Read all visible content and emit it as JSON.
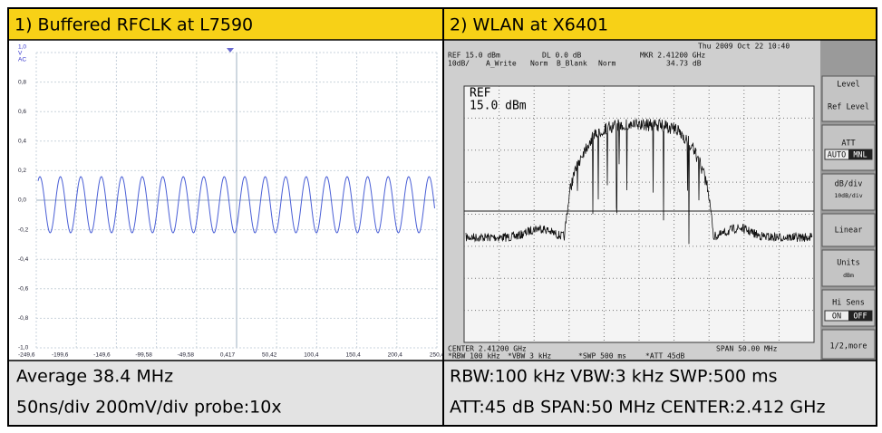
{
  "left": {
    "title": "1) Buffered RFCLK at L7590",
    "scope": {
      "channel": [
        "1,0",
        "V",
        "AC"
      ],
      "y_labels": [
        "0,8",
        "0,6",
        "0,4",
        "0,2",
        "0,0",
        "-0,2",
        "-0,4",
        "-0,6",
        "-0,8",
        "-1,0"
      ],
      "x_labels": [
        "-249,6",
        "-199,6",
        "-149,6",
        "-99,58",
        "-49,58",
        "0,417",
        "50,42",
        "100,4",
        "150,4",
        "200,4",
        "250,4"
      ]
    },
    "footer": [
      "Average 38.4 MHz",
      "50ns/div 200mV/div probe:10x"
    ]
  },
  "right": {
    "title": "2) WLAN at X6401",
    "screen": {
      "date": "Thu 2009 Oct 22 10:40",
      "top_row1": [
        "REF 15.0 dBm",
        "DL 0.0 dB",
        "MKR 2.41200 GHz"
      ],
      "top_row2": [
        "10dB/",
        "A_Write",
        "Norm",
        "B_Blank",
        "Norm",
        "34.73 dB"
      ],
      "ref": [
        "REF",
        "15.0 dBm"
      ],
      "bottom_row1": [
        "CENTER 2.41200 GHz",
        "SPAN 50.00 MHz"
      ],
      "bottom_row2": [
        "*RBW 100 kHz",
        "*VBW 3 kHz",
        "*SWP 500 ms",
        "*ATT 45dB"
      ],
      "softkeys": {
        "title": "Level",
        "ref_level": "Ref Level",
        "att": "ATT",
        "att_auto": "AUTO",
        "att_mnl": "MNL",
        "db_div": "dB/div",
        "db_div_value": "10dB/div",
        "linear": "Linear",
        "units": "Units",
        "units_value": "dBm",
        "hi_sens": "Hi Sens",
        "hi_on": "ON",
        "hi_off": "OFF",
        "more": "1/2,more"
      }
    },
    "footer": [
      "RBW:100 kHz   VBW:3 kHz   SWP:500 ms",
      "ATT:45 dB  SPAN:50 MHz  CENTER:2.412 GHz"
    ]
  }
}
